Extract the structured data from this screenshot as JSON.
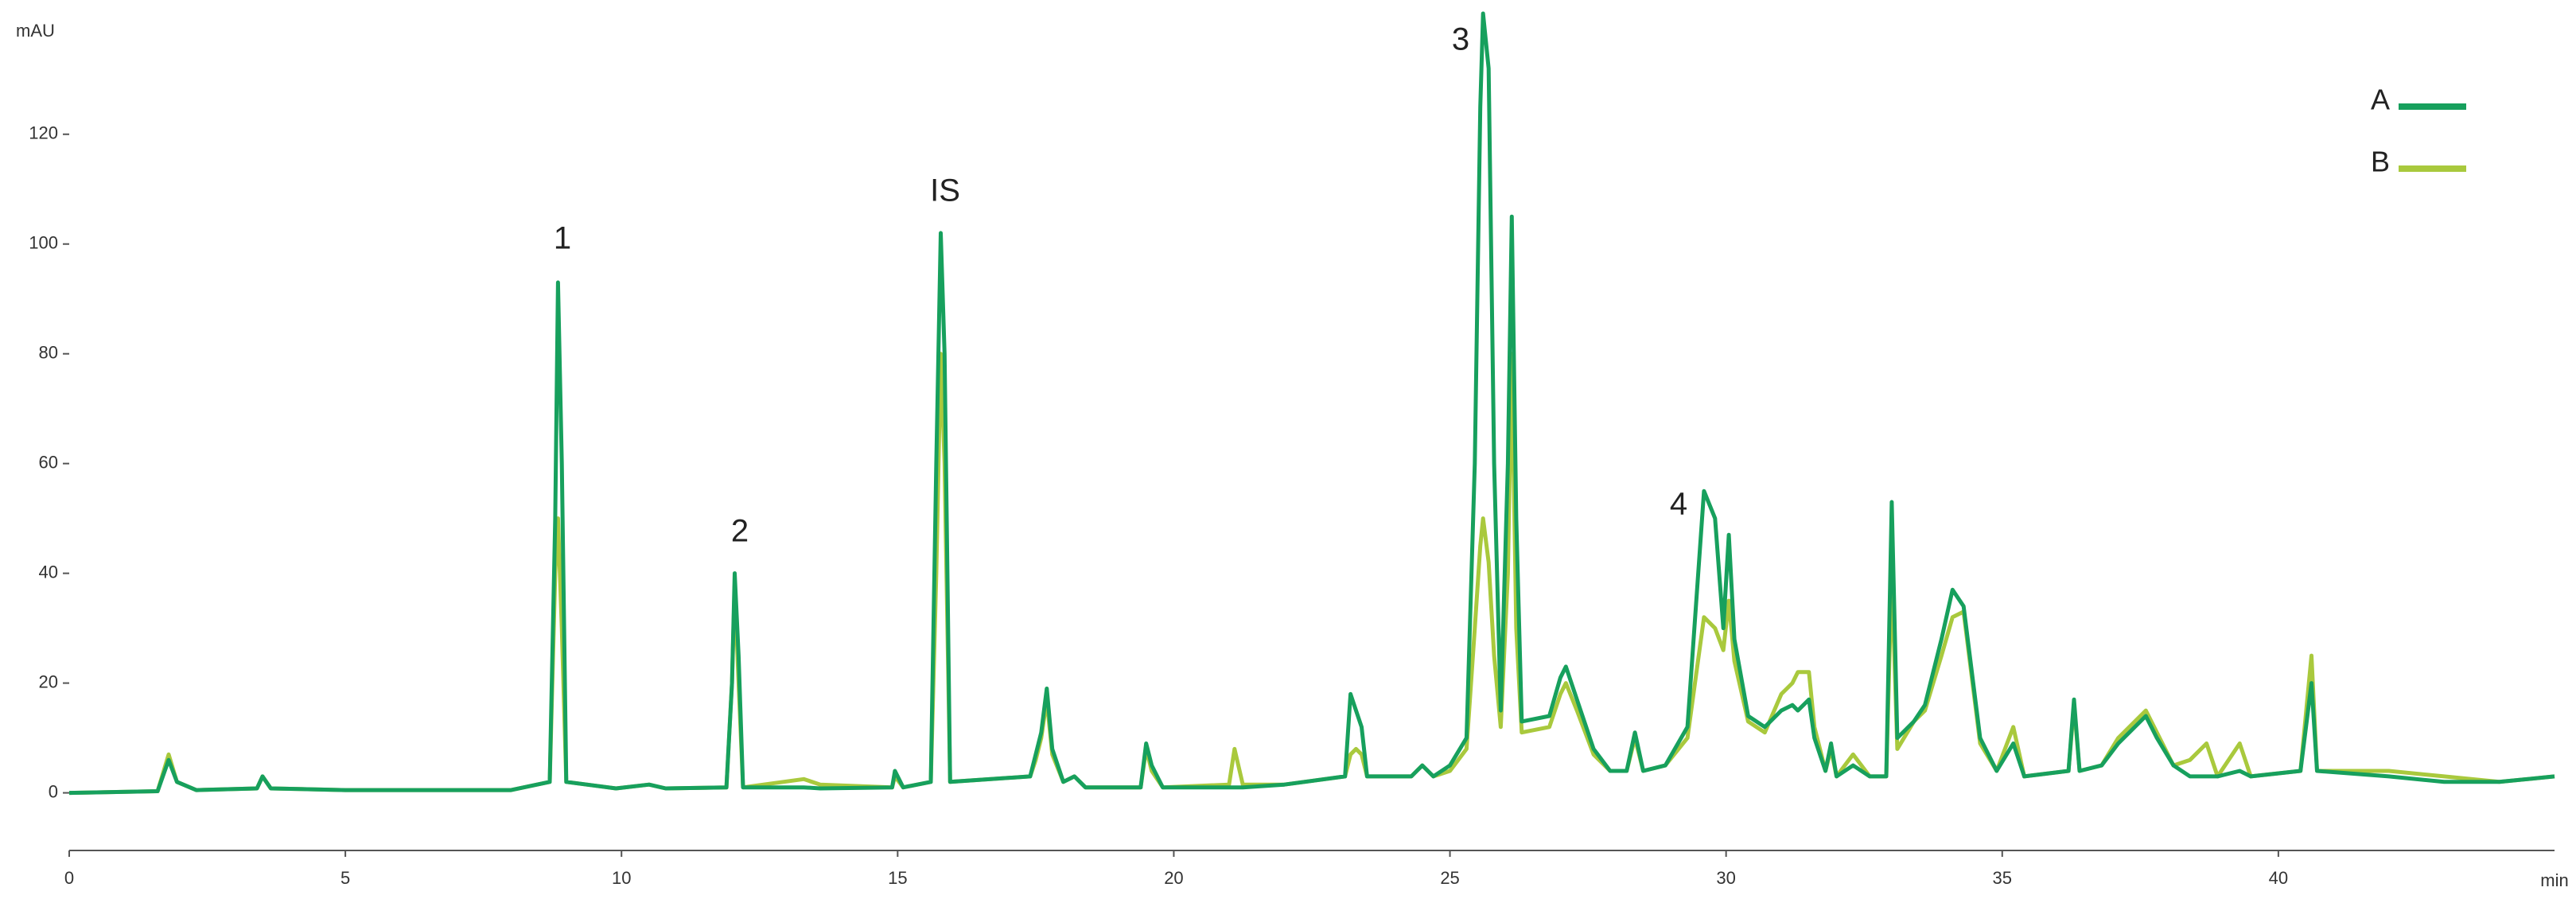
{
  "chart_data": {
    "type": "line",
    "y_label": "mAU",
    "x_label": "min",
    "annotations": [
      "1",
      "2",
      "IS",
      "3",
      "4"
    ],
    "xlim": [
      0,
      45
    ],
    "xticks": [
      0,
      5,
      10,
      15,
      20,
      25,
      30,
      35,
      40
    ],
    "ylim": [
      -10.5,
      142
    ],
    "yticks": [
      0,
      20,
      40,
      60,
      80,
      100,
      120
    ],
    "legend": "top-right",
    "x": [
      0,
      1.6,
      1.8,
      1.95,
      2.3,
      3.4,
      3.5,
      3.65,
      5,
      8,
      8.7,
      8.8,
      8.85,
      8.92,
      9.0,
      9.9,
      10.5,
      10.8,
      11.9,
      12.0,
      12.05,
      12.12,
      12.2,
      13.3,
      13.6,
      14.9,
      14.95,
      15.1,
      15.6,
      15.7,
      15.78,
      15.85,
      15.95,
      17.4,
      17.5,
      17.6,
      17.7,
      17.8,
      18.0,
      18.2,
      18.4,
      19.4,
      19.5,
      19.6,
      19.8,
      21,
      21.1,
      21.25,
      22,
      23.1,
      23.2,
      23.3,
      23.4,
      23.5,
      24.3,
      24.5,
      24.7,
      25.0,
      25.3,
      25.45,
      25.55,
      25.6,
      25.7,
      25.8,
      25.92,
      26.05,
      26.12,
      26.2,
      26.3,
      26.8,
      27.0,
      27.1,
      27.3,
      27.6,
      27.9,
      28.2,
      28.35,
      28.5,
      28.9,
      29.3,
      29.6,
      29.8,
      29.95,
      30.05,
      30.15,
      30.4,
      30.7,
      31.0,
      31.2,
      31.3,
      31.5,
      31.6,
      31.8,
      31.9,
      32.0,
      32.3,
      32.6,
      32.9,
      33.0,
      33.1,
      33.4,
      33.6,
      33.9,
      34.1,
      34.3,
      34.6,
      34.9,
      35.2,
      35.4,
      36.2,
      36.3,
      36.4,
      36.8,
      37.1,
      37.6,
      37.8,
      38.1,
      38.4,
      38.7,
      38.9,
      39.3,
      39.5,
      40.4,
      40.6,
      40.7,
      42.0,
      43.0,
      44.0,
      45
    ],
    "series": [
      {
        "name": "A",
        "color": "#17a05d",
        "values": [
          0,
          0.3,
          6,
          2,
          0.5,
          0.8,
          3,
          0.8,
          0.5,
          0.5,
          2,
          50,
          93,
          60,
          2,
          0.8,
          1.5,
          0.8,
          1,
          20,
          40,
          25,
          1,
          1,
          0.8,
          1,
          4,
          1,
          2,
          60,
          102,
          80,
          2,
          3,
          7,
          11,
          19,
          8,
          2,
          3,
          1,
          1,
          9,
          5,
          1,
          1,
          1,
          1,
          1.5,
          3,
          18,
          15,
          12,
          3,
          3,
          5,
          3,
          5,
          10,
          60,
          125,
          142,
          132,
          60,
          15,
          60,
          105,
          50,
          13,
          14,
          21,
          23,
          17,
          8,
          4,
          4,
          11,
          4,
          5,
          12,
          55,
          50,
          30,
          47,
          28,
          14,
          12,
          15,
          16,
          15,
          17,
          10,
          4,
          9,
          3,
          5,
          3,
          3,
          53,
          10,
          13,
          16,
          28,
          37,
          34,
          10,
          4,
          9,
          3,
          4,
          17,
          4,
          5,
          9,
          14,
          10,
          5,
          3,
          3,
          3,
          4,
          3,
          4,
          20,
          4,
          3,
          2,
          2,
          3
        ]
      },
      {
        "name": "B",
        "color": "#a9c93d",
        "values": [
          0,
          0.3,
          7,
          2,
          0.5,
          0.8,
          3,
          0.8,
          0.5,
          0.5,
          2,
          40,
          50,
          30,
          2,
          0.8,
          1.5,
          0.8,
          1,
          20,
          38,
          20,
          1,
          2.5,
          1.5,
          1,
          3,
          1,
          2,
          40,
          80,
          60,
          2,
          3,
          6,
          10,
          17,
          7,
          2,
          3,
          1,
          1,
          8,
          4,
          1,
          1.5,
          8,
          1.5,
          1.5,
          3,
          7,
          8,
          7,
          3,
          3,
          5,
          3,
          4,
          8,
          30,
          45,
          50,
          42,
          25,
          12,
          40,
          80,
          30,
          11,
          12,
          18,
          20,
          15,
          7,
          4,
          4,
          10,
          4,
          5,
          10,
          32,
          30,
          26,
          35,
          24,
          13,
          11,
          18,
          20,
          22,
          22,
          12,
          4,
          8,
          3,
          7,
          3,
          3,
          40,
          8,
          13,
          15,
          25,
          32,
          33,
          9,
          4,
          12,
          3,
          4,
          16,
          4,
          5,
          10,
          15,
          11,
          5,
          6,
          9,
          3,
          9,
          3,
          4,
          25,
          4,
          4,
          3,
          2,
          3
        ]
      }
    ]
  }
}
